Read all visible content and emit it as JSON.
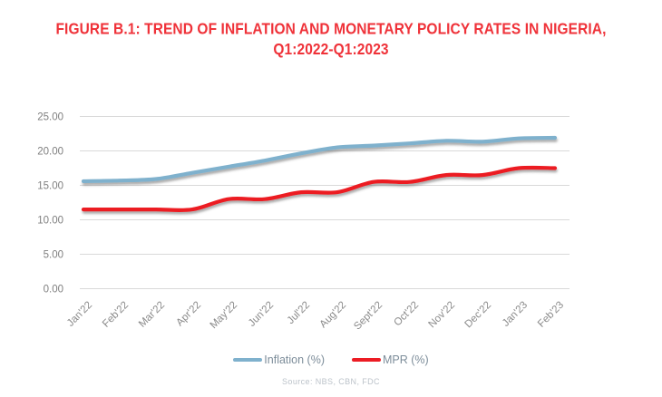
{
  "title": {
    "line1": "FIGURE B.1: TREND OF INFLATION AND MONETARY POLICY RATES IN NIGERIA,",
    "line2": "Q1:2022-Q1:2023"
  },
  "source": "Source: NBS, CBN,  FDC",
  "colors": {
    "title_red": "#EF3239",
    "inflation_blue": "#7FB1CD",
    "mpr_red": "#EC1C24",
    "y_axis_text": "#7F7F7F",
    "x_axis_text": "#8A8A8A",
    "legend_text": "#7D8D9A",
    "gridline": "#D9D9D9",
    "source_text": "#BCC3CA"
  },
  "legend": [
    {
      "label": "Inflation (%)"
    },
    {
      "label": "MPR (%)"
    }
  ],
  "chart_data": {
    "type": "line",
    "categories": [
      "Jan'22",
      "Feb'22",
      "Mar'22",
      "Apr'22",
      "May'22",
      "Jun'22",
      "Jul'22",
      "Aug'22",
      "Sept'22",
      "Oct'22",
      "Nov'22",
      "Dec'22",
      "Jan'23",
      "Feb'23"
    ],
    "series": [
      {
        "name": "Inflation (%)",
        "color": "#7FB1CD",
        "values": [
          15.6,
          15.7,
          15.92,
          16.82,
          17.71,
          18.6,
          19.64,
          20.52,
          20.77,
          21.09,
          21.47,
          21.34,
          21.82,
          21.91
        ]
      },
      {
        "name": "MPR (%)",
        "color": "#EC1C24",
        "values": [
          11.5,
          11.5,
          11.5,
          11.5,
          13.0,
          13.0,
          14.0,
          14.0,
          15.5,
          15.5,
          16.5,
          16.5,
          17.5,
          17.5
        ]
      }
    ],
    "title": "FIGURE B.1: TREND OF INFLATION AND MONETARY POLICY RATES IN NIGERIA, Q1:2022-Q1:2023",
    "xlabel": "",
    "ylabel": "",
    "ylim": [
      0,
      25
    ],
    "ytick_step": 5,
    "ytick_labels": [
      "0.00",
      "5.00",
      "10.00",
      "15.00",
      "20.00",
      "25.00"
    ],
    "grid": true,
    "smooth": true,
    "legend_position": "bottom"
  }
}
